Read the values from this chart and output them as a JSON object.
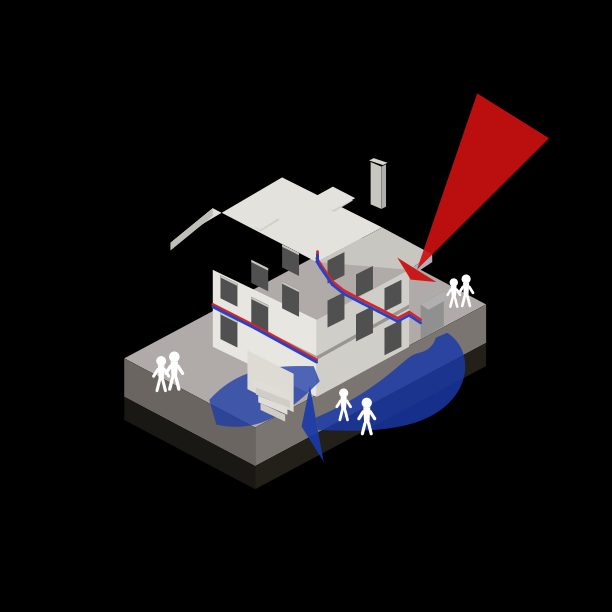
{
  "bg": "#000000",
  "platform_top": "#b0aaa8",
  "platform_left": "#6a6560",
  "platform_right": "#7a7570",
  "platform_shadow": "#2a2520",
  "wall_light": "#e8e6e0",
  "wall_mid": "#d0cec8",
  "wall_dark": "#b8b6b0",
  "roof_light": "#e4e2dc",
  "roof_mid": "#c8c6c0",
  "window_dark": "#505050",
  "window_frame": "#d0cec8",
  "red_arrow": "#cc1111",
  "blue_arrow": "#1a3aaa",
  "pipe_red": "#dd2222",
  "pipe_blue": "#2244cc",
  "white": "#ffffff",
  "chimney": "#c8c6c0",
  "heat_pump": "#909090"
}
